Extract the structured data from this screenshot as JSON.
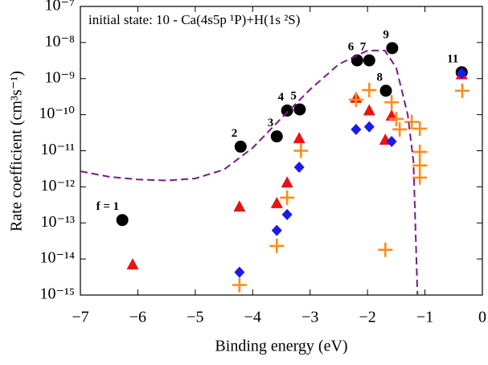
{
  "chart_data": {
    "type": "scatter",
    "annotation": "initial state: 10 - Ca(4s5p ¹P)+H(1s ²S)",
    "xlabel": "Binding energy (eV)",
    "ylabel": "Rate coefficient (cm³s⁻¹)",
    "log_y": true,
    "xlim": [
      -7,
      0
    ],
    "ylim": [
      1e-15,
      1e-07
    ],
    "xticks": [
      {
        "value": -7,
        "label": "−7"
      },
      {
        "value": -6,
        "label": "−6"
      },
      {
        "value": -5,
        "label": "−5"
      },
      {
        "value": -4,
        "label": "−4"
      },
      {
        "value": -3,
        "label": "−3"
      },
      {
        "value": -2,
        "label": "−2"
      },
      {
        "value": -1,
        "label": "−1"
      },
      0
    ],
    "yticks": [
      {
        "value": 1e-15,
        "label": "10⁻¹⁵"
      },
      {
        "value": 1e-14,
        "label": "10⁻¹⁴"
      },
      {
        "value": 1e-13,
        "label": "10⁻¹³"
      },
      {
        "value": 1e-12,
        "label": "10⁻¹²"
      },
      {
        "value": 1e-11,
        "label": "10⁻¹¹"
      },
      {
        "value": 1e-10,
        "label": "10⁻¹⁰"
      },
      {
        "value": 1e-09,
        "label": "10⁻⁹"
      },
      {
        "value": 1e-08,
        "label": "10⁻⁸"
      },
      {
        "value": 1e-07,
        "label": "10⁻⁷"
      }
    ],
    "series": [
      {
        "marker": "circle",
        "color": "#000000",
        "x": [
          -6.27,
          -4.21,
          -3.58,
          -3.4,
          -3.18,
          -2.18,
          -1.97,
          -1.68,
          -1.57,
          -0.36
        ],
        "values": [
          1.2e-13,
          1.3e-11,
          2.5e-11,
          1.3e-10,
          1.4e-10,
          3.2e-09,
          3.2e-09,
          4.6e-10,
          7e-09,
          1.5e-09
        ],
        "point_labels": [
          "f = 1",
          "2",
          "3",
          "4",
          "5",
          "6",
          "7",
          "8",
          "9",
          "11"
        ]
      },
      {
        "marker": "triangle",
        "color": "#ee1111",
        "x": [
          -6.09,
          -4.23,
          -3.58,
          -3.4,
          -3.19,
          -2.2,
          -1.97,
          -1.69,
          -1.58,
          -0.36
        ],
        "values": [
          7e-15,
          2.8e-13,
          3.5e-13,
          1.3e-12,
          2.2e-11,
          2.9e-10,
          1.3e-10,
          2e-11,
          9.3e-11,
          1.3e-09
        ]
      },
      {
        "marker": "diamond",
        "color": "#1a1aee",
        "x": [
          -4.23,
          -3.58,
          -3.4,
          -3.19,
          -2.2,
          -1.97,
          -1.58,
          -0.36
        ],
        "values": [
          4.3e-15,
          6.2e-14,
          1.7e-13,
          3.5e-12,
          3.9e-11,
          4.6e-11,
          1.8e-11,
          1.4e-09
        ]
      },
      {
        "marker": "plus",
        "color": "#ff8c1a",
        "x": [
          -4.23,
          -3.58,
          -3.4,
          -3.16,
          -2.2,
          -1.97,
          -1.69,
          -1.58,
          -1.5,
          -1.44,
          -1.23,
          -1.09,
          -1.09,
          -1.09,
          -1.09,
          -0.35
        ],
        "values": [
          1.9e-15,
          2.3e-14,
          5e-13,
          1e-11,
          2.6e-10,
          4.8e-10,
          1.8e-14,
          2.2e-10,
          7.6e-11,
          3.9e-11,
          6.3e-11,
          4.1e-11,
          9.3e-12,
          3.9e-12,
          1.8e-12,
          4.6e-10
        ]
      },
      {
        "marker": "dashed-line",
        "color": "#7a1a8c",
        "x": [
          -7,
          -6.5,
          -6,
          -5.5,
          -5,
          -4.5,
          -4,
          -3.5,
          -3,
          -2.5,
          -2,
          -1.7,
          -1.5,
          -1.3,
          -1.2,
          -1.13
        ],
        "values": [
          2.7e-12,
          1.9e-12,
          1.6e-12,
          1.5e-12,
          1.7e-12,
          3e-12,
          1.2e-11,
          8e-11,
          5e-10,
          2.5e-09,
          6e-09,
          6e-09,
          2e-09,
          1e-10,
          5e-12,
          1e-15
        ]
      }
    ]
  }
}
